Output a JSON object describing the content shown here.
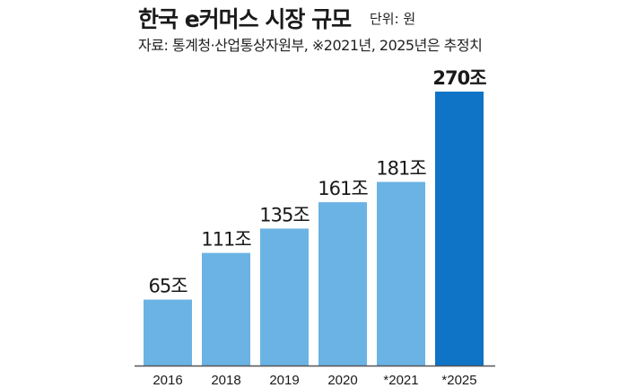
{
  "header": {
    "title": "한국 e커머스 시장 규모",
    "unit": "단위: 원",
    "source": "자료: 통계청·산업통상자원부, ※2021년, 2025년은 추정치"
  },
  "colors": {
    "bar": "#6bb3e4",
    "bar_highlight": "#0f73c6",
    "axis": "#555555"
  },
  "chart_data": {
    "type": "bar",
    "title": "한국 e커머스 시장 규모",
    "categories": [
      "2016",
      "2018",
      "2019",
      "2020",
      "*2021",
      "*2025"
    ],
    "values": [
      65,
      111,
      135,
      161,
      181,
      270
    ],
    "value_labels": [
      "65조",
      "111조",
      "135조",
      "161조",
      "181조",
      "270조"
    ],
    "highlight_index": 5,
    "ylim": [
      0,
      270
    ],
    "grid": false
  }
}
